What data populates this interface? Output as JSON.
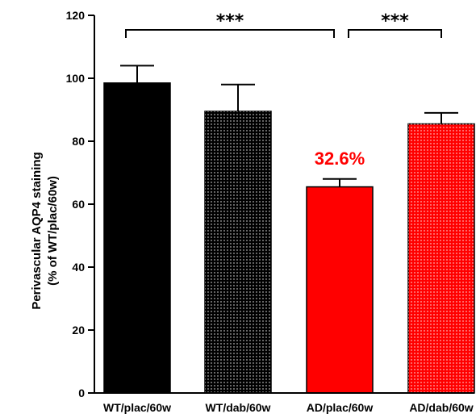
{
  "chart_data": {
    "type": "bar",
    "categories": [
      "WT/plac/60w",
      "WT/dab/60w",
      "AD/plac/60w",
      "AD/dab/60w"
    ],
    "values": [
      98.5,
      89.5,
      65.5,
      85.5
    ],
    "errors": [
      5.5,
      8.5,
      2.5,
      3.5
    ],
    "ylabel_line1": "Perivascular AQP4 staining",
    "ylabel_line2": "(% of WT/plac/60w)",
    "ylim": [
      0,
      120
    ],
    "yticks": [
      0,
      20,
      40,
      60,
      80,
      100,
      120
    ],
    "annotation": {
      "text": "32.6%",
      "category_index": 2,
      "color": "#ff0000"
    },
    "significance": [
      {
        "from": 0,
        "to": 2,
        "label": "***"
      },
      {
        "from": 2,
        "to": 3,
        "label": "***"
      }
    ],
    "bar_styles": [
      {
        "fill": "#000000",
        "pattern": "none"
      },
      {
        "fill": "#000000",
        "pattern": "dots-white"
      },
      {
        "fill": "#ff0000",
        "pattern": "none"
      },
      {
        "fill": "#ff0000",
        "pattern": "dots-white"
      }
    ],
    "grid": false
  }
}
